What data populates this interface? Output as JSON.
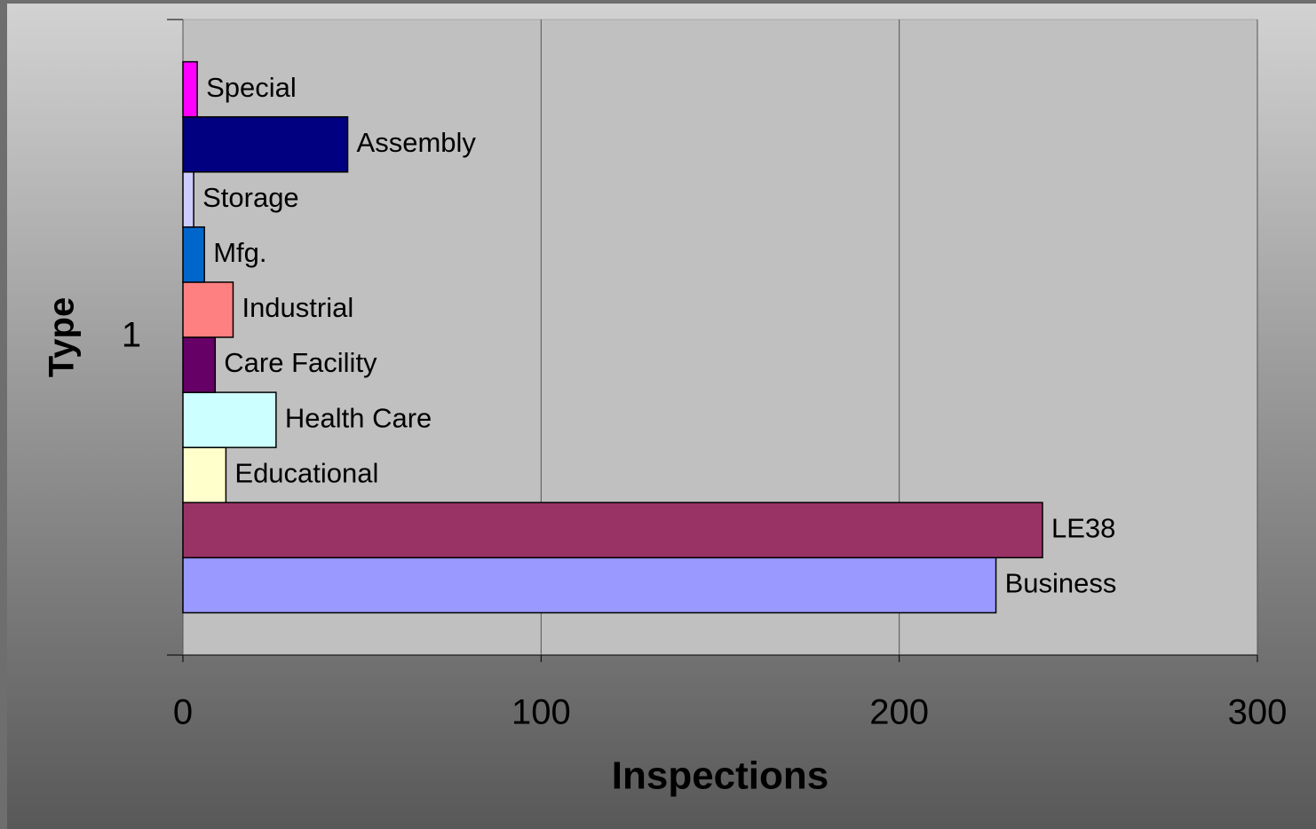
{
  "chart_data": {
    "type": "bar",
    "orientation": "horizontal",
    "x_label": "Inspections",
    "y_label": "Type",
    "categories": [
      "1"
    ],
    "series": [
      {
        "name": "Business",
        "color": "#9999ff",
        "values": [
          227
        ]
      },
      {
        "name": "LE38",
        "color": "#993366",
        "values": [
          240
        ]
      },
      {
        "name": "Educational",
        "color": "#ffffcc",
        "values": [
          12
        ]
      },
      {
        "name": "Health Care",
        "color": "#ccffff",
        "values": [
          26
        ]
      },
      {
        "name": "Care Facility",
        "color": "#660066",
        "values": [
          9
        ]
      },
      {
        "name": "Industrial",
        "color": "#ff8080",
        "values": [
          14
        ]
      },
      {
        "name": "Mfg.",
        "color": "#0066cc",
        "values": [
          6
        ]
      },
      {
        "name": "Storage",
        "color": "#ccccff",
        "values": [
          3
        ]
      },
      {
        "name": "Assembly",
        "color": "#000080",
        "values": [
          46
        ]
      },
      {
        "name": "Special",
        "color": "#ff00ff",
        "values": [
          4
        ]
      }
    ],
    "xlim": [
      0,
      300
    ],
    "xticks": [
      0,
      100,
      200,
      300
    ],
    "grid": true
  }
}
